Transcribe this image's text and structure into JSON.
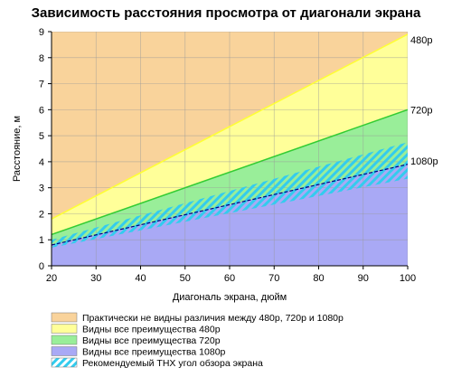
{
  "chart_data": {
    "type": "area",
    "title": "Зависимость расстояния просмотра от диагонали экрана",
    "xlabel": "Диагональ экрана, дюйм",
    "ylabel": "Расстояние, м",
    "xlim": [
      20,
      100
    ],
    "ylim": [
      0,
      9
    ],
    "x_ticks": [
      20,
      30,
      40,
      50,
      60,
      70,
      80,
      90,
      100
    ],
    "y_ticks": [
      0,
      1,
      2,
      3,
      4,
      5,
      6,
      7,
      8,
      9
    ],
    "grid": true,
    "boundaries": [
      {
        "name": "480p",
        "x": [
          20,
          100
        ],
        "y": [
          1.8,
          8.9
        ],
        "color": "#ffff33"
      },
      {
        "name": "720p",
        "x": [
          20,
          100
        ],
        "y": [
          1.2,
          6.0
        ],
        "color": "#33cc33"
      },
      {
        "name": "1080p",
        "x": [
          20,
          100
        ],
        "y": [
          0.8,
          3.9
        ],
        "color": "#000080"
      }
    ],
    "thx_band": {
      "x": [
        20,
        100
      ],
      "y_low": [
        0.7,
        3.35
      ],
      "y_high": [
        1.0,
        4.75
      ]
    },
    "regions": [
      {
        "label": "Практически не видны различия между 480p, 720p и 1080p",
        "color": "#f9d39b"
      },
      {
        "label": "Видны все преимущества 480p",
        "color": "#ffff99"
      },
      {
        "label": "Видны все преимущества 720p",
        "color": "#99ee99"
      },
      {
        "label": "Видны все преимущества 1080p",
        "color": "#a9a9f5"
      },
      {
        "label": "Рекомендуемый THX угол обзора экрана",
        "color": "#33ccee",
        "pattern": "hatch"
      }
    ]
  }
}
